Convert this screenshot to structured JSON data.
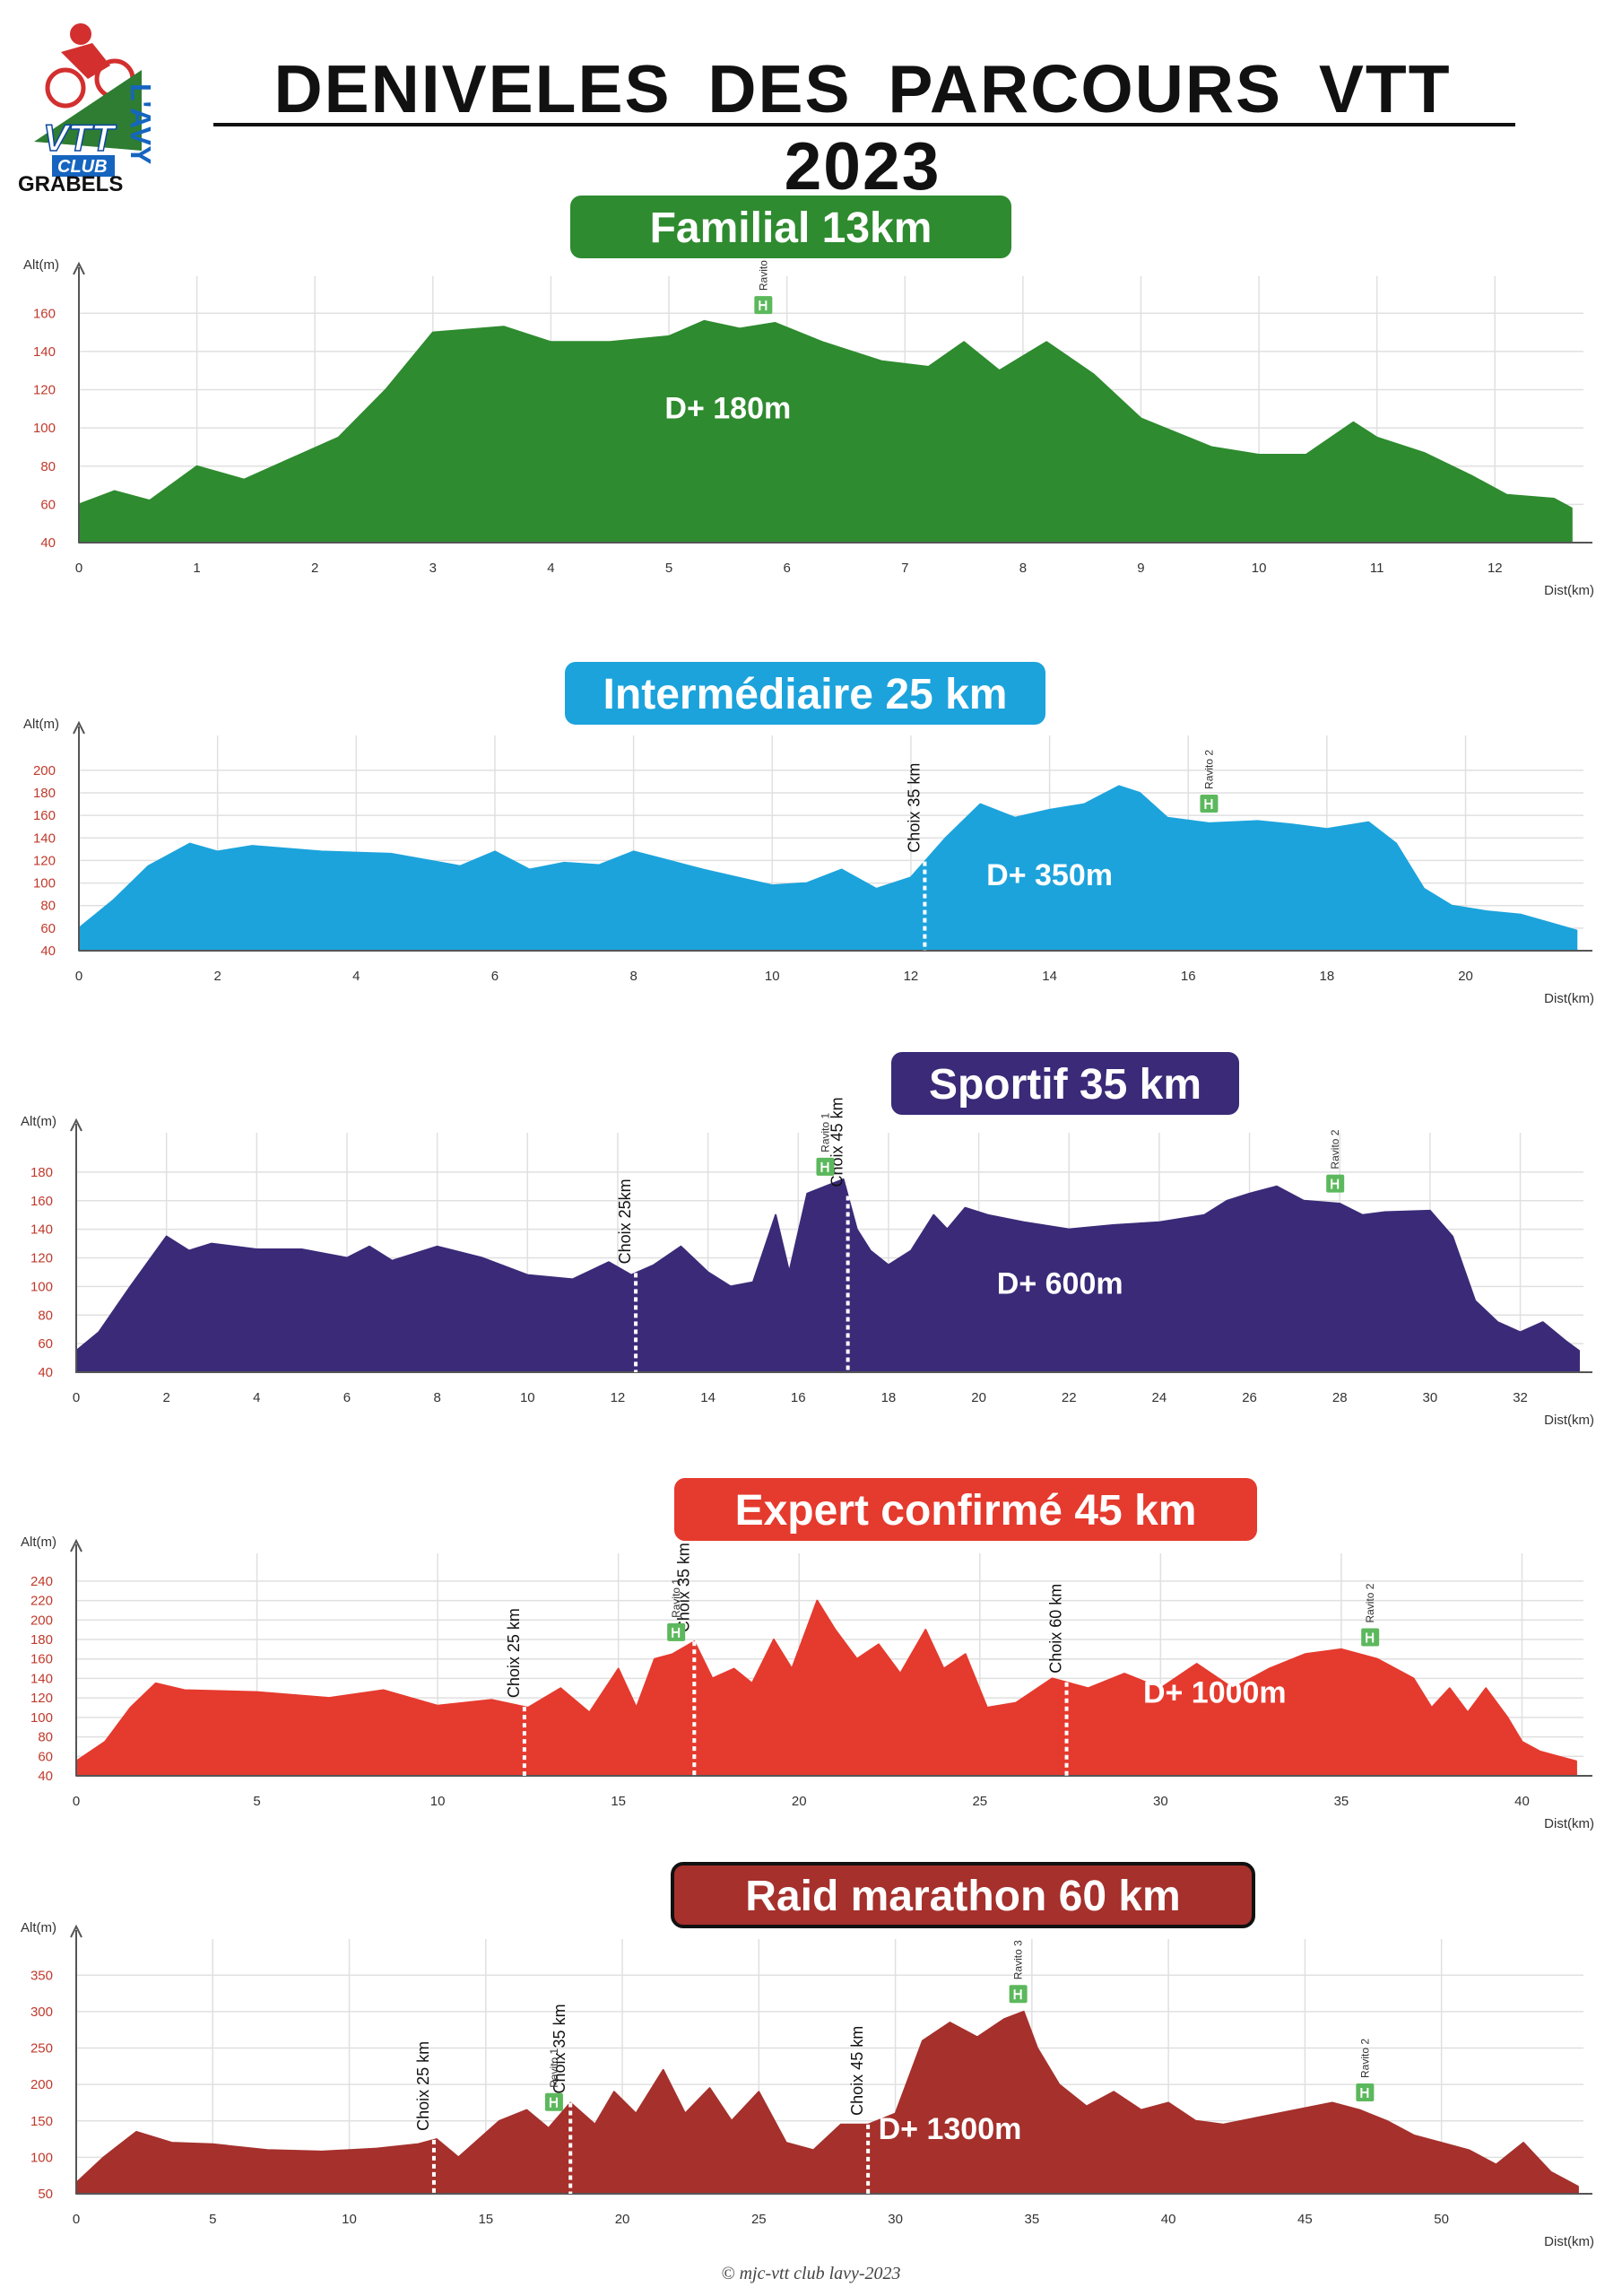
{
  "header": {
    "title": "DENIVELES  DES  PARCOURS  VTT  2023",
    "logo_text": "GRABELS",
    "logo_badges": [
      "VTT",
      "CLUB",
      "L'AVY"
    ]
  },
  "footer": {
    "text": "© mjc-vtt club lavy-2023"
  },
  "chart_data": [
    {
      "type": "area",
      "title": "Familial 13km",
      "color": "#2e8b2f",
      "title_color": "#2e8b2f",
      "ylabel": "Alt(m)",
      "xlabel": "Dist(km)",
      "ylim": [
        40,
        170
      ],
      "yticks": [
        40,
        60,
        80,
        100,
        120,
        140,
        160
      ],
      "xlim": [
        0,
        12.75
      ],
      "xticks": [
        0,
        1,
        2,
        3,
        4,
        5,
        6,
        7,
        8,
        9,
        10,
        11,
        12
      ],
      "grid": true,
      "dplus": "D+ 180m",
      "dplus_pos": [
        5.5,
        105
      ],
      "x": [
        0,
        0.3,
        0.6,
        1.0,
        1.4,
        1.8,
        2.2,
        2.6,
        3.0,
        3.2,
        3.6,
        4.0,
        4.5,
        5.0,
        5.3,
        5.6,
        5.9,
        6.3,
        6.8,
        7.2,
        7.5,
        7.8,
        8.2,
        8.6,
        9.0,
        9.6,
        10.0,
        10.4,
        10.8,
        11.0,
        11.4,
        11.8,
        12.1,
        12.5,
        12.65
      ],
      "y": [
        60,
        67,
        62,
        80,
        73,
        84,
        95,
        120,
        150,
        151,
        153,
        145,
        145,
        148,
        156,
        152,
        155,
        145,
        135,
        132,
        145,
        130,
        145,
        128,
        105,
        90,
        86,
        86,
        103,
        95,
        87,
        75,
        65,
        63,
        58
      ],
      "markers": [],
      "ravitos": [
        {
          "label": "Ravito",
          "x": 5.8
        }
      ]
    },
    {
      "type": "area",
      "title": "Intermédiaire 25 km",
      "color": "#1ca3dc",
      "title_color": "#1ca3dc",
      "ylabel": "Alt(m)",
      "xlabel": "Dist(km)",
      "ylim": [
        40,
        215
      ],
      "yticks": [
        40,
        60,
        80,
        100,
        120,
        140,
        160,
        180,
        200
      ],
      "xlim": [
        0,
        21.7
      ],
      "xticks": [
        0,
        2,
        4,
        6,
        8,
        10,
        12,
        14,
        16,
        18,
        20
      ],
      "grid": true,
      "dplus": "D+ 350m",
      "dplus_pos": [
        14.0,
        98
      ],
      "x": [
        0,
        0.5,
        1.0,
        1.6,
        2.0,
        2.5,
        3.5,
        4.5,
        5.5,
        6.0,
        6.5,
        7.0,
        7.5,
        8.0,
        8.5,
        9.0,
        9.5,
        10.0,
        10.5,
        11.0,
        11.5,
        12.0,
        12.5,
        13.0,
        13.5,
        14.0,
        14.5,
        15.0,
        15.3,
        15.7,
        16.3,
        17.0,
        17.5,
        18.0,
        18.6,
        19.0,
        19.4,
        19.8,
        20.3,
        20.8,
        21.2,
        21.6
      ],
      "y": [
        60,
        85,
        115,
        135,
        128,
        133,
        128,
        126,
        115,
        128,
        112,
        118,
        116,
        128,
        120,
        112,
        105,
        98,
        100,
        112,
        95,
        105,
        140,
        170,
        158,
        165,
        170,
        186,
        180,
        158,
        153,
        155,
        152,
        148,
        154,
        135,
        95,
        80,
        75,
        72,
        65,
        58
      ],
      "markers": [
        {
          "label": "Choix 35 km",
          "x": 12.2
        }
      ],
      "ravitos": [
        {
          "label": "Ravito 2",
          "x": 16.3
        }
      ]
    },
    {
      "type": "area",
      "title": "Sportif 35 km",
      "color": "#3b2a78",
      "title_color": "#3b2a78",
      "ylabel": "Alt(m)",
      "xlabel": "Dist(km)",
      "ylim": [
        40,
        195
      ],
      "yticks": [
        40,
        60,
        80,
        100,
        120,
        140,
        160,
        180
      ],
      "xlim": [
        0,
        33.4
      ],
      "xticks": [
        0,
        2,
        4,
        6,
        8,
        10,
        12,
        14,
        16,
        18,
        20,
        22,
        24,
        26,
        28,
        30,
        32
      ],
      "grid": true,
      "dplus": "D+ 600m",
      "dplus_pos": [
        21.8,
        95
      ],
      "x": [
        0,
        0.5,
        1.2,
        2.0,
        2.5,
        3.0,
        4.0,
        5.0,
        6.0,
        6.5,
        7.0,
        8.0,
        9.0,
        10.0,
        11.0,
        11.8,
        12.3,
        12.8,
        13.4,
        14.0,
        14.5,
        15.0,
        15.5,
        15.8,
        16.2,
        16.6,
        17.0,
        17.3,
        17.6,
        18.0,
        18.5,
        19.0,
        19.3,
        19.7,
        20.2,
        21.0,
        22.0,
        23.0,
        24.0,
        25.0,
        25.5,
        26.0,
        26.6,
        27.2,
        28.0,
        28.5,
        29.0,
        30.0,
        30.5,
        31.0,
        31.5,
        32.0,
        32.5,
        33.0,
        33.3
      ],
      "y": [
        55,
        68,
        100,
        135,
        125,
        130,
        126,
        126,
        120,
        128,
        118,
        128,
        120,
        108,
        105,
        117,
        108,
        115,
        128,
        110,
        100,
        103,
        150,
        110,
        165,
        170,
        175,
        140,
        125,
        115,
        125,
        150,
        140,
        155,
        150,
        145,
        140,
        143,
        145,
        150,
        160,
        165,
        170,
        160,
        158,
        150,
        152,
        153,
        135,
        90,
        75,
        68,
        75,
        62,
        55
      ],
      "markers": [
        {
          "label": "Choix 25km",
          "x": 12.4
        },
        {
          "label": "Choix 45 km",
          "x": 17.1
        }
      ],
      "ravitos": [
        {
          "label": "Ravito 1",
          "x": 16.6
        },
        {
          "label": "Ravito 2",
          "x": 27.9
        }
      ]
    },
    {
      "type": "area",
      "title": "Expert confirmé  45 km",
      "color": "#e53a2e",
      "title_color": "#e53a2e",
      "ylabel": "Alt(m)",
      "xlabel": "Dist(km)",
      "ylim": [
        40,
        250
      ],
      "yticks": [
        40,
        60,
        80,
        100,
        120,
        140,
        160,
        180,
        200,
        220,
        240
      ],
      "xlim": [
        0,
        41.7
      ],
      "xticks": [
        0,
        5,
        10,
        15,
        20,
        25,
        30,
        35,
        40
      ],
      "grid": true,
      "dplus": "D+ 1000m",
      "dplus_pos": [
        31.5,
        115
      ],
      "x": [
        0,
        0.8,
        1.5,
        2.2,
        3.0,
        5.0,
        7.0,
        8.5,
        10.0,
        11.5,
        12.5,
        13.4,
        14.2,
        15.0,
        15.5,
        16.0,
        16.5,
        17.1,
        17.6,
        18.2,
        18.7,
        19.3,
        19.8,
        20.5,
        21.0,
        21.6,
        22.2,
        22.8,
        23.5,
        24.0,
        24.6,
        25.2,
        26.0,
        27.0,
        28.0,
        29.0,
        30.0,
        31.0,
        32.0,
        33.0,
        34.0,
        35.0,
        36.0,
        37.0,
        37.5,
        38.0,
        38.5,
        39.0,
        39.6,
        40.0,
        40.5,
        41.0,
        41.5
      ],
      "y": [
        55,
        75,
        110,
        135,
        128,
        126,
        120,
        128,
        112,
        118,
        110,
        130,
        105,
        150,
        110,
        160,
        165,
        178,
        140,
        150,
        135,
        180,
        150,
        220,
        190,
        160,
        175,
        145,
        190,
        150,
        165,
        110,
        115,
        140,
        130,
        145,
        130,
        155,
        130,
        150,
        165,
        170,
        160,
        140,
        110,
        130,
        105,
        130,
        100,
        75,
        65,
        60,
        55
      ],
      "markers": [
        {
          "label": "Choix 25 km",
          "x": 12.4
        },
        {
          "label": "Choix 35 km",
          "x": 17.1
        },
        {
          "label": "Choix 60 km",
          "x": 27.4
        }
      ],
      "ravitos": [
        {
          "label": "Ravito 1",
          "x": 16.6
        },
        {
          "label": "Ravito 2",
          "x": 35.8
        }
      ]
    },
    {
      "type": "area",
      "title": "Raid marathon 60 km",
      "color": "#a5302c",
      "title_color": "#a5302c",
      "ylabel": "Alt(m)",
      "xlabel": "Dist(km)",
      "ylim": [
        50,
        375
      ],
      "yticks": [
        50,
        100,
        150,
        200,
        250,
        300,
        350
      ],
      "xlim": [
        0,
        55.2
      ],
      "xticks": [
        0,
        5,
        10,
        15,
        20,
        25,
        30,
        35,
        40,
        45,
        50
      ],
      "grid": true,
      "dplus": "D+ 1300m",
      "dplus_pos": [
        32.0,
        125
      ],
      "x": [
        0,
        1.0,
        2.2,
        3.5,
        5.0,
        7.0,
        9.0,
        11.0,
        12.5,
        13.2,
        14.0,
        15.5,
        16.5,
        17.3,
        18.1,
        19.0,
        19.7,
        20.5,
        21.5,
        22.3,
        23.2,
        24.0,
        25.0,
        26.0,
        27.0,
        28.0,
        29.0,
        30.0,
        31.0,
        32.0,
        33.0,
        34.0,
        34.7,
        35.2,
        36.0,
        37.0,
        38.0,
        39.0,
        40.0,
        41.0,
        42.0,
        44.0,
        46.0,
        47.0,
        48.0,
        49.0,
        50.0,
        51.0,
        52.0,
        53.0,
        54.0,
        55.0
      ],
      "y": [
        65,
        100,
        135,
        120,
        118,
        110,
        108,
        112,
        118,
        125,
        100,
        150,
        165,
        140,
        175,
        145,
        190,
        160,
        220,
        160,
        195,
        150,
        190,
        120,
        110,
        145,
        145,
        160,
        260,
        285,
        265,
        290,
        300,
        250,
        200,
        170,
        190,
        165,
        175,
        150,
        145,
        160,
        175,
        165,
        150,
        130,
        120,
        110,
        90,
        120,
        80,
        60
      ],
      "markers": [
        {
          "label": "Choix 25 km",
          "x": 13.1
        },
        {
          "label": "Choix 35 km",
          "x": 18.1
        },
        {
          "label": "Choix 45 km",
          "x": 29.0
        }
      ],
      "ravitos": [
        {
          "label": "Ravito 1",
          "x": 17.5
        },
        {
          "label": "Ravito 3",
          "x": 34.5
        },
        {
          "label": "Ravito 2",
          "x": 47.2
        }
      ]
    }
  ]
}
